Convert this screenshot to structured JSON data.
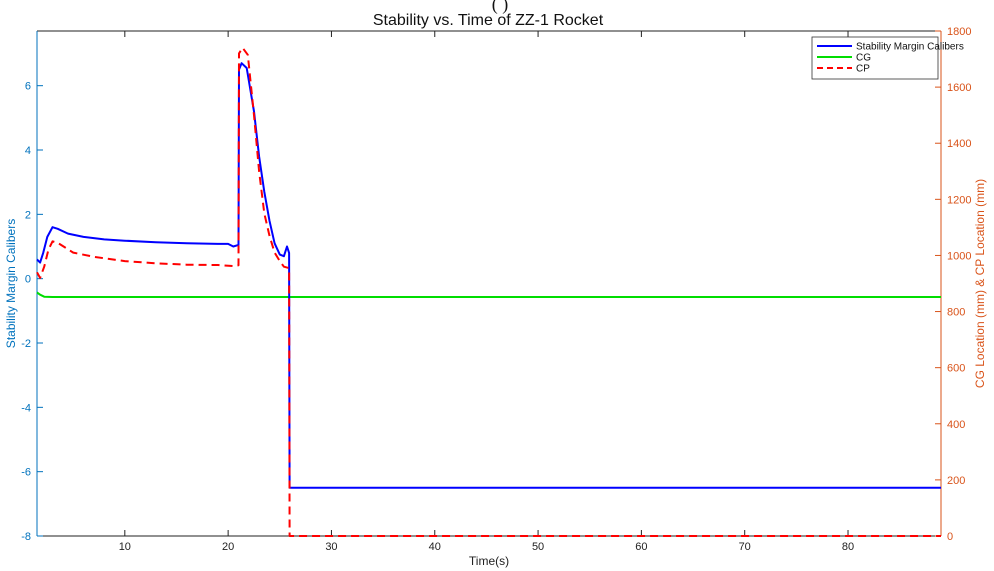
{
  "chart_data": {
    "type": "line",
    "title": "Stability vs. Time of ZZ-1 Rocket",
    "partial_top_label": "( )",
    "xlabel": "Time(s)",
    "ylabel_left": "Stability Margin Calibers",
    "ylabel_right": "CG Location (mm) & CP Location (mm)",
    "xlim": [
      1.5,
      89
    ],
    "ylim_left": [
      -8,
      7.7
    ],
    "ylim_right": [
      0,
      1800
    ],
    "x_ticks": [
      10,
      20,
      30,
      40,
      50,
      60,
      70,
      80
    ],
    "y_left_ticks": [
      -8,
      -6,
      -4,
      -2,
      0,
      2,
      4,
      6
    ],
    "y_right_ticks": [
      0,
      200,
      400,
      600,
      800,
      1000,
      1200,
      1400,
      1600,
      1800
    ],
    "grid": false,
    "legend_position": "top-right",
    "colors": {
      "left_axis": "#0072bd",
      "right_axis": "#d95319",
      "margin": "#0000ff",
      "cg": "#00dd00",
      "cp": "#ff0000"
    },
    "series": [
      {
        "name": "Stability Margin Calibers",
        "axis": "left",
        "style": "solid",
        "color": "#0000ff",
        "points": [
          [
            1.5,
            0.6
          ],
          [
            1.8,
            0.5
          ],
          [
            2.1,
            0.8
          ],
          [
            2.5,
            1.3
          ],
          [
            3.0,
            1.6
          ],
          [
            3.5,
            1.55
          ],
          [
            4.5,
            1.4
          ],
          [
            6,
            1.3
          ],
          [
            8,
            1.22
          ],
          [
            10,
            1.18
          ],
          [
            13,
            1.13
          ],
          [
            16,
            1.1
          ],
          [
            19,
            1.08
          ],
          [
            20,
            1.08
          ],
          [
            20.5,
            1.0
          ],
          [
            21.0,
            1.05
          ],
          [
            21.05,
            6.5
          ],
          [
            21.3,
            6.7
          ],
          [
            21.8,
            6.55
          ],
          [
            22.5,
            5.2
          ],
          [
            23.0,
            3.8
          ],
          [
            23.5,
            2.7
          ],
          [
            24.0,
            1.8
          ],
          [
            24.5,
            1.1
          ],
          [
            25.0,
            0.75
          ],
          [
            25.4,
            0.7
          ],
          [
            25.7,
            1.0
          ],
          [
            25.9,
            0.8
          ],
          [
            25.95,
            -6.5
          ],
          [
            89,
            -6.5
          ]
        ]
      },
      {
        "name": "CG",
        "axis": "right",
        "style": "solid",
        "color": "#00dd00",
        "points": [
          [
            1.5,
            868
          ],
          [
            1.8,
            860
          ],
          [
            2.2,
            853
          ],
          [
            3,
            852
          ],
          [
            89,
            852
          ]
        ]
      },
      {
        "name": "CP",
        "axis": "right",
        "style": "dashed",
        "color": "#ff0000",
        "points": [
          [
            1.5,
            940
          ],
          [
            1.8,
            920
          ],
          [
            2.2,
            960
          ],
          [
            2.6,
            1020
          ],
          [
            3.0,
            1050
          ],
          [
            3.5,
            1045
          ],
          [
            5,
            1010
          ],
          [
            7,
            995
          ],
          [
            10,
            980
          ],
          [
            13,
            972
          ],
          [
            16,
            967
          ],
          [
            19,
            966
          ],
          [
            20.5,
            962
          ],
          [
            21.0,
            965
          ],
          [
            21.05,
            1720
          ],
          [
            21.4,
            1740
          ],
          [
            21.9,
            1715
          ],
          [
            22.5,
            1500
          ],
          [
            23.0,
            1300
          ],
          [
            23.5,
            1150
          ],
          [
            24.0,
            1070
          ],
          [
            24.5,
            1010
          ],
          [
            25.0,
            980
          ],
          [
            25.4,
            960
          ],
          [
            25.9,
            955
          ],
          [
            25.95,
            0
          ],
          [
            89,
            0
          ]
        ]
      }
    ]
  }
}
